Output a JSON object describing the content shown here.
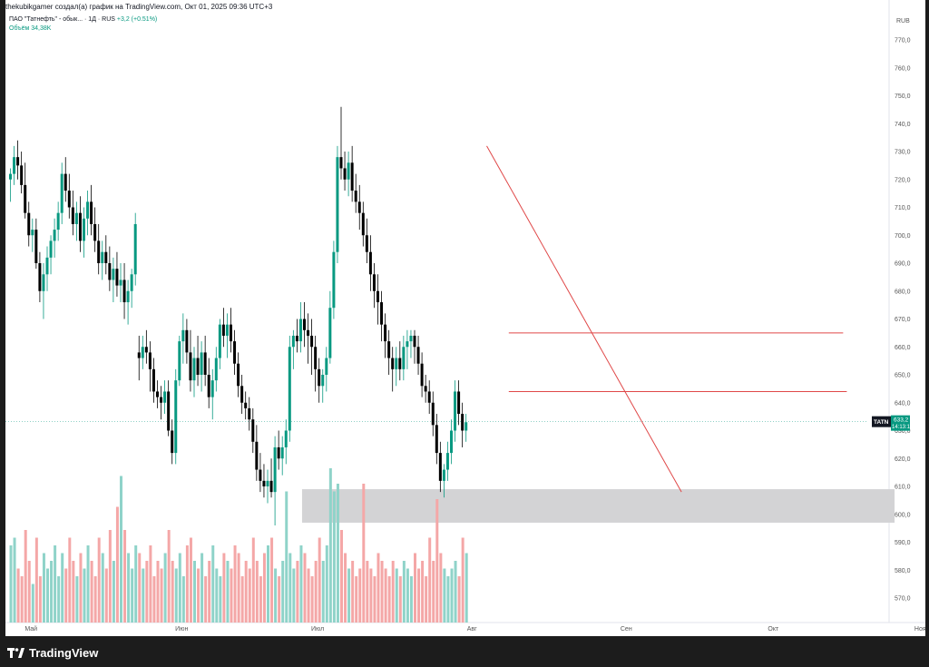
{
  "header": {
    "attribution": "thekubikgamer создал(а) график на TradingView.com, Окт 01, 2025 09:36 UTC+3"
  },
  "legend": {
    "symbol_line": "ПАО \"Татнефть\" - обык... · 1Д · RUS",
    "change": "+3,2 (+0.51%)",
    "volume_line": "Объём  34,38K"
  },
  "currency": "RUB",
  "price_tag": {
    "ticker": "TATN",
    "price": "633,2",
    "countdown": "14:13:13"
  },
  "footer": {
    "brand": "TradingView"
  },
  "colors": {
    "up": "#089981",
    "down": "#000000",
    "vol_up": "#8fd3c9",
    "vol_down": "#f4a7a7",
    "trend": "#e04848",
    "zone": "#d3d3d5"
  },
  "chart_data": {
    "type": "candlestick",
    "ylim": [
      565,
      775
    ],
    "y_ticks": [
      "770,0",
      "760,0",
      "750,0",
      "740,0",
      "730,0",
      "720,0",
      "710,0",
      "700,0",
      "690,0",
      "680,0",
      "670,0",
      "660,0",
      "650,0",
      "640,0",
      "630,0",
      "620,0",
      "610,0",
      "600,0",
      "590,0",
      "580,0",
      "570,0"
    ],
    "y_tick_values": [
      770,
      760,
      750,
      740,
      730,
      720,
      710,
      700,
      690,
      680,
      670,
      660,
      650,
      640,
      630,
      620,
      610,
      600,
      590,
      580,
      570
    ],
    "months": [
      {
        "label": "Май",
        "index": 4
      },
      {
        "label": "Июн",
        "index": 45
      },
      {
        "label": "Июл",
        "index": 82
      },
      {
        "label": "Авг",
        "index": 124
      },
      {
        "label": "Сен",
        "index": 166
      },
      {
        "label": "Окт",
        "index": 206
      },
      {
        "label": "Ноя",
        "index": 246
      }
    ],
    "candles_ohlc": [
      [
        720,
        724,
        712,
        722
      ],
      [
        722,
        732,
        718,
        728
      ],
      [
        728,
        734,
        720,
        725
      ],
      [
        725,
        730,
        715,
        718
      ],
      [
        718,
        726,
        706,
        708
      ],
      [
        708,
        712,
        696,
        700
      ],
      [
        700,
        706,
        694,
        702
      ],
      [
        702,
        706,
        688,
        690
      ],
      [
        690,
        694,
        676,
        680
      ],
      [
        680,
        690,
        670,
        686
      ],
      [
        686,
        696,
        680,
        692
      ],
      [
        692,
        700,
        686,
        698
      ],
      [
        698,
        706,
        692,
        702
      ],
      [
        702,
        712,
        698,
        708
      ],
      [
        708,
        726,
        704,
        722
      ],
      [
        722,
        728,
        712,
        716
      ],
      [
        716,
        722,
        706,
        710
      ],
      [
        710,
        716,
        700,
        704
      ],
      [
        704,
        712,
        698,
        708
      ],
      [
        708,
        714,
        694,
        698
      ],
      [
        698,
        710,
        692,
        706
      ],
      [
        706,
        716,
        700,
        712
      ],
      [
        712,
        718,
        700,
        704
      ],
      [
        704,
        710,
        694,
        698
      ],
      [
        698,
        704,
        686,
        690
      ],
      [
        690,
        698,
        684,
        694
      ],
      [
        694,
        700,
        686,
        690
      ],
      [
        690,
        696,
        680,
        684
      ],
      [
        684,
        692,
        676,
        688
      ],
      [
        688,
        694,
        678,
        682
      ],
      [
        682,
        690,
        676,
        684
      ],
      [
        684,
        690,
        670,
        676
      ],
      [
        676,
        684,
        668,
        680
      ],
      [
        680,
        688,
        674,
        686
      ],
      [
        686,
        708,
        682,
        704
      ],
      [
        658,
        664,
        648,
        656
      ],
      [
        656,
        664,
        652,
        660
      ],
      [
        660,
        666,
        654,
        658
      ],
      [
        658,
        662,
        644,
        652
      ],
      [
        652,
        656,
        640,
        644
      ],
      [
        644,
        648,
        638,
        642
      ],
      [
        642,
        646,
        634,
        640
      ],
      [
        640,
        648,
        636,
        644
      ],
      [
        644,
        648,
        628,
        630
      ],
      [
        630,
        634,
        618,
        622
      ],
      [
        622,
        652,
        618,
        648
      ],
      [
        648,
        664,
        646,
        662
      ],
      [
        662,
        672,
        654,
        666
      ],
      [
        666,
        670,
        654,
        658
      ],
      [
        658,
        666,
        644,
        648
      ],
      [
        648,
        660,
        642,
        656
      ],
      [
        656,
        664,
        646,
        650
      ],
      [
        650,
        662,
        644,
        658
      ],
      [
        658,
        664,
        646,
        650
      ],
      [
        650,
        656,
        638,
        642
      ],
      [
        642,
        652,
        634,
        648
      ],
      [
        648,
        660,
        644,
        656
      ],
      [
        656,
        670,
        652,
        668
      ],
      [
        668,
        674,
        660,
        664
      ],
      [
        664,
        672,
        656,
        668
      ],
      [
        668,
        674,
        658,
        662
      ],
      [
        662,
        666,
        650,
        654
      ],
      [
        654,
        658,
        642,
        646
      ],
      [
        646,
        650,
        636,
        640
      ],
      [
        640,
        644,
        634,
        638
      ],
      [
        638,
        642,
        630,
        634
      ],
      [
        634,
        638,
        622,
        626
      ],
      [
        626,
        632,
        612,
        616
      ],
      [
        616,
        622,
        608,
        612
      ],
      [
        612,
        618,
        606,
        610
      ],
      [
        610,
        616,
        604,
        612
      ],
      [
        612,
        620,
        606,
        608
      ],
      [
        608,
        628,
        596,
        624
      ],
      [
        624,
        630,
        616,
        620
      ],
      [
        620,
        628,
        614,
        624
      ],
      [
        624,
        634,
        618,
        630
      ],
      [
        630,
        664,
        626,
        660
      ],
      [
        660,
        666,
        652,
        664
      ],
      [
        664,
        670,
        658,
        662
      ],
      [
        662,
        676,
        658,
        670
      ],
      [
        670,
        676,
        660,
        666
      ],
      [
        666,
        672,
        654,
        664
      ],
      [
        664,
        670,
        650,
        660
      ],
      [
        660,
        664,
        644,
        652
      ],
      [
        652,
        656,
        640,
        646
      ],
      [
        646,
        652,
        640,
        650
      ],
      [
        650,
        660,
        644,
        656
      ],
      [
        656,
        680,
        654,
        674
      ],
      [
        674,
        698,
        670,
        694
      ],
      [
        694,
        732,
        690,
        728
      ],
      [
        728,
        746,
        720,
        724
      ],
      [
        724,
        730,
        716,
        720
      ],
      [
        720,
        730,
        714,
        726
      ],
      [
        726,
        732,
        712,
        716
      ],
      [
        716,
        722,
        708,
        712
      ],
      [
        712,
        718,
        702,
        708
      ],
      [
        708,
        712,
        696,
        700
      ],
      [
        700,
        706,
        690,
        694
      ],
      [
        694,
        700,
        680,
        686
      ],
      [
        686,
        690,
        674,
        680
      ],
      [
        680,
        686,
        668,
        676
      ],
      [
        676,
        680,
        662,
        668
      ],
      [
        668,
        672,
        656,
        662
      ],
      [
        662,
        666,
        650,
        656
      ],
      [
        656,
        660,
        644,
        652
      ],
      [
        652,
        660,
        646,
        656
      ],
      [
        656,
        662,
        648,
        652
      ],
      [
        652,
        664,
        648,
        660
      ],
      [
        660,
        666,
        652,
        662
      ],
      [
        662,
        666,
        656,
        664
      ],
      [
        664,
        666,
        654,
        660
      ],
      [
        660,
        664,
        650,
        654
      ],
      [
        654,
        658,
        642,
        646
      ],
      [
        646,
        650,
        640,
        644
      ],
      [
        644,
        648,
        636,
        640
      ],
      [
        640,
        644,
        628,
        632
      ],
      [
        632,
        636,
        618,
        622
      ],
      [
        622,
        626,
        608,
        612
      ],
      [
        612,
        618,
        606,
        616
      ],
      [
        616,
        626,
        612,
        622
      ],
      [
        622,
        634,
        618,
        630
      ],
      [
        630,
        648,
        626,
        644
      ],
      [
        644,
        648,
        632,
        636
      ],
      [
        636,
        640,
        624,
        630
      ],
      [
        630,
        636,
        626,
        633
      ]
    ],
    "volume_rel": [
      0.5,
      0.55,
      0.35,
      0.3,
      0.6,
      0.4,
      0.25,
      0.55,
      0.3,
      0.45,
      0.35,
      0.4,
      0.5,
      0.3,
      0.45,
      0.35,
      0.55,
      0.4,
      0.3,
      0.45,
      0.35,
      0.5,
      0.4,
      0.3,
      0.55,
      0.45,
      0.35,
      0.6,
      0.4,
      0.75,
      0.95,
      0.6,
      0.45,
      0.35,
      0.5,
      0.45,
      0.35,
      0.4,
      0.5,
      0.3,
      0.4,
      0.35,
      0.45,
      0.6,
      0.4,
      0.35,
      0.45,
      0.3,
      0.5,
      0.55,
      0.4,
      0.35,
      0.45,
      0.3,
      0.4,
      0.5,
      0.35,
      0.3,
      0.45,
      0.4,
      0.35,
      0.5,
      0.45,
      0.3,
      0.4,
      0.35,
      0.55,
      0.4,
      0.3,
      0.45,
      0.5,
      0.55,
      0.35,
      0.3,
      0.4,
      0.85,
      0.45,
      0.35,
      0.4,
      0.5,
      0.45,
      0.35,
      0.3,
      0.4,
      0.55,
      0.4,
      0.5,
      1.0,
      0.85,
      0.9,
      0.6,
      0.45,
      0.35,
      0.4,
      0.3,
      0.35,
      0.9,
      0.4,
      0.35,
      0.3,
      0.45,
      0.4,
      0.35,
      0.3,
      0.4,
      0.35,
      0.3,
      0.4,
      0.35,
      0.3,
      0.45,
      0.35,
      0.4,
      0.3,
      0.55,
      0.4,
      0.8,
      0.45,
      0.35,
      0.3,
      0.35,
      0.4,
      0.3,
      0.55,
      0.45
    ],
    "candles_start_x": 10,
    "candle_spacing": 4.05,
    "annotations": {
      "trendline": {
        "from": [
          130,
          732
        ],
        "to": [
          183,
          608
        ]
      },
      "hlines": [
        {
          "from_index": 136,
          "to_index": 227,
          "price": 665
        },
        {
          "from_index": 136,
          "to_index": 228,
          "price": 644
        }
      ],
      "zone": {
        "from_index": 79,
        "to_index": 241,
        "price_top": 609,
        "price_bottom": 597
      },
      "last_price_line": 633.2
    }
  }
}
